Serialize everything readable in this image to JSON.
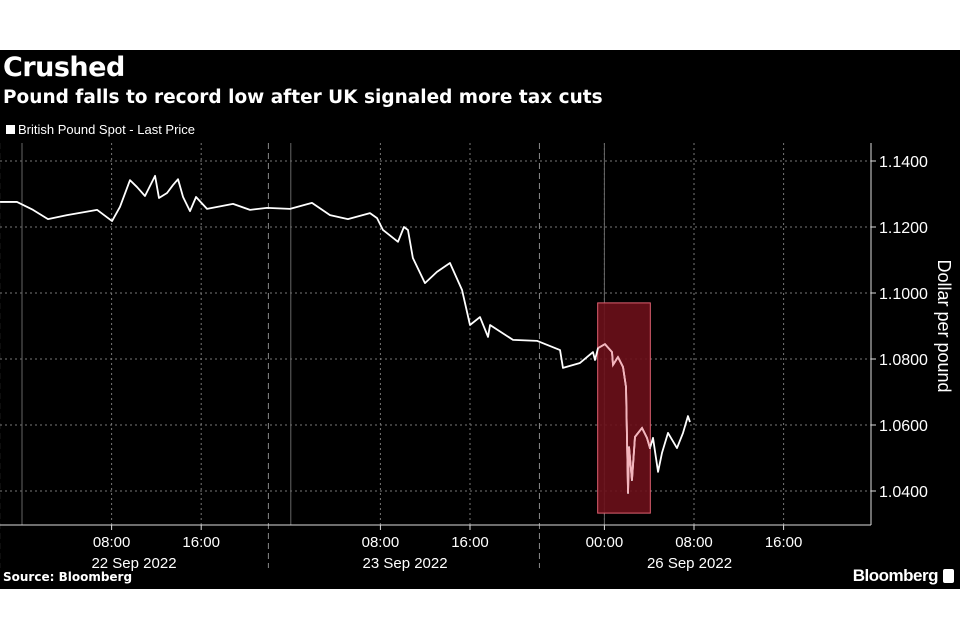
{
  "title": "Crushed",
  "subtitle": "Pound falls to record low after UK signaled more tax cuts",
  "legend_label": "British Pound Spot - Last Price",
  "source": "Source: Bloomberg",
  "brand": "Bloomberg",
  "colors": {
    "background": "#000000",
    "line": "#ffffff",
    "highlight_fill": "#6b0f1a",
    "highlight_stroke": "#e06070",
    "highlight_line": "#f4b4bc"
  },
  "chart_data": {
    "type": "line",
    "title": "Crushed",
    "subtitle": "Pound falls to record low after UK signaled more tax cuts",
    "xlabel": "",
    "ylabel": "Dollar per pound",
    "x_units": "trading hours from 22 Sep 2022 00:00 (weekend compressed)",
    "xlim": [
      -2,
      75.8
    ],
    "ylim": [
      1.0303,
      1.1455
    ],
    "yticks": [
      1.14,
      1.12,
      1.1,
      1.08,
      1.06,
      1.04
    ],
    "ytick_labels": [
      "1.1400",
      "1.1200",
      "1.1000",
      "1.0800",
      "1.0600",
      "1.0400"
    ],
    "xticks": [
      {
        "x": 8,
        "label": "08:00"
      },
      {
        "x": 16,
        "label": "16:00"
      },
      {
        "x": 32,
        "label": "08:00"
      },
      {
        "x": 40,
        "label": "16:00"
      },
      {
        "x": 52,
        "label": "00:00"
      },
      {
        "x": 60,
        "label": "08:00"
      },
      {
        "x": 68,
        "label": "16:00"
      }
    ],
    "day_labels": [
      {
        "x": 10,
        "label": "22 Sep 2022"
      },
      {
        "x": 34.2,
        "label": "23 Sep 2022"
      },
      {
        "x": 59.6,
        "label": "26 Sep 2022"
      }
    ],
    "day_separators": [
      -2,
      22,
      46.2
    ],
    "day_starts": [
      0,
      24,
      52
    ],
    "grid": true,
    "legend": "top-left",
    "highlight": {
      "x": [
        51.4,
        56.1
      ],
      "y": [
        1.0333,
        1.097
      ]
    },
    "series": [
      {
        "name": "British Pound Spot - Last Price",
        "points": [
          [
            -1.96,
            1.1276
          ],
          [
            -0.45,
            1.1276
          ],
          [
            0.98,
            1.1252
          ],
          [
            2.32,
            1.1224
          ],
          [
            4.02,
            1.1236
          ],
          [
            6.7,
            1.1252
          ],
          [
            8.04,
            1.1218
          ],
          [
            8.75,
            1.1261
          ],
          [
            9.64,
            1.1342
          ],
          [
            10.27,
            1.1321
          ],
          [
            10.98,
            1.1294
          ],
          [
            11.88,
            1.1355
          ],
          [
            12.23,
            1.1288
          ],
          [
            12.95,
            1.1303
          ],
          [
            13.48,
            1.1327
          ],
          [
            13.93,
            1.1345
          ],
          [
            14.38,
            1.1291
          ],
          [
            15.0,
            1.1248
          ],
          [
            15.54,
            1.1291
          ],
          [
            16.52,
            1.1255
          ],
          [
            18.84,
            1.127
          ],
          [
            20.36,
            1.1252
          ],
          [
            21.88,
            1.1258
          ],
          [
            23.93,
            1.1255
          ],
          [
            25.89,
            1.1273
          ],
          [
            27.5,
            1.1236
          ],
          [
            29.1,
            1.1224
          ],
          [
            31.07,
            1.1242
          ],
          [
            31.7,
            1.1227
          ],
          [
            32.23,
            1.1191
          ],
          [
            33.57,
            1.1155
          ],
          [
            34.1,
            1.12
          ],
          [
            34.46,
            1.1191
          ],
          [
            34.9,
            1.1106
          ],
          [
            35.98,
            1.103
          ],
          [
            37.05,
            1.1064
          ],
          [
            38.21,
            1.1091
          ],
          [
            39.29,
            1.1009
          ],
          [
            40.0,
            1.0903
          ],
          [
            40.89,
            1.0927
          ],
          [
            41.61,
            1.0867
          ],
          [
            41.79,
            1.0903
          ],
          [
            43.84,
            1.0858
          ],
          [
            45.98,
            1.0855
          ],
          [
            48.04,
            1.0827
          ],
          [
            48.3,
            1.0773
          ],
          [
            49.82,
            1.0788
          ],
          [
            50.98,
            1.0821
          ],
          [
            51.16,
            1.0797
          ],
          [
            51.43,
            1.0833
          ],
          [
            52.05,
            1.0845
          ],
          [
            52.68,
            1.0821
          ],
          [
            52.77,
            1.0782
          ],
          [
            53.21,
            1.0806
          ],
          [
            53.66,
            1.0776
          ],
          [
            53.93,
            1.0715
          ],
          [
            54.02,
            1.0555
          ],
          [
            54.11,
            1.0394
          ],
          [
            54.2,
            1.0533
          ],
          [
            54.46,
            1.0433
          ],
          [
            54.73,
            1.0564
          ],
          [
            55.36,
            1.0591
          ],
          [
            55.8,
            1.0561
          ],
          [
            56.07,
            1.053
          ],
          [
            56.34,
            1.0561
          ],
          [
            56.79,
            1.0458
          ],
          [
            57.14,
            1.0515
          ],
          [
            57.68,
            1.0576
          ],
          [
            58.48,
            1.053
          ],
          [
            59.02,
            1.0576
          ],
          [
            59.46,
            1.0627
          ],
          [
            59.64,
            1.0609
          ]
        ]
      }
    ]
  }
}
